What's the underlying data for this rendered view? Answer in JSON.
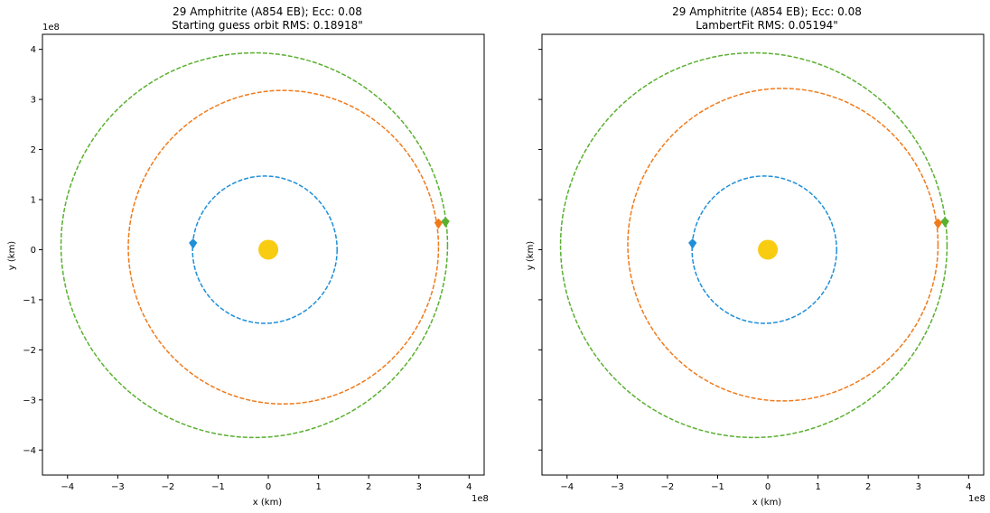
{
  "chart_data": [
    {
      "type": "line",
      "title_line1": "29 Amphitrite (A854 EB); Ecc: 0.08",
      "title_line2": "Starting guess orbit RMS: 0.18918\"",
      "xlabel": "x (km)",
      "ylabel": "y (km)",
      "x_offset_text": "1e8",
      "y_offset_text": "1e8",
      "xlim": [
        -4.5,
        4.3
      ],
      "ylim": [
        -4.5,
        4.3
      ],
      "xticks": [
        -4,
        -3,
        -2,
        -1,
        0,
        1,
        2,
        3,
        4
      ],
      "yticks": [
        -4,
        -3,
        -2,
        -1,
        0,
        1,
        2,
        3,
        4
      ],
      "grid": false,
      "sun": {
        "x": 0,
        "y": 0
      },
      "series": [
        {
          "color": "#1f8fd8",
          "center": [
            -0.07,
            0.0
          ],
          "rx": 1.44,
          "ry": 1.47,
          "marker": [
            -1.5,
            0.12
          ]
        },
        {
          "color": "#f07a1a",
          "center": [
            0.3,
            0.05
          ],
          "rx": 3.09,
          "ry": 3.13,
          "marker": [
            3.39,
            0.52
          ]
        },
        {
          "color": "#5ab030",
          "center": [
            -0.28,
            0.09
          ],
          "rx": 3.85,
          "ry": 3.84,
          "marker": [
            3.53,
            0.55
          ]
        }
      ]
    },
    {
      "type": "line",
      "title_line1": "29 Amphitrite (A854 EB); Ecc: 0.08",
      "title_line2": "LambertFit RMS: 0.05194\"",
      "xlabel": "x (km)",
      "ylabel": "y (km)",
      "x_offset_text": "1e8",
      "y_offset_text": "",
      "xlim": [
        -4.5,
        4.3
      ],
      "ylim": [
        -4.5,
        4.3
      ],
      "xticks": [
        -4,
        -3,
        -2,
        -1,
        0,
        1,
        2,
        3,
        4
      ],
      "yticks": [
        -4,
        -3,
        -2,
        -1,
        0,
        1,
        2,
        3,
        4
      ],
      "show_ytick_labels": false,
      "grid": false,
      "sun": {
        "x": 0,
        "y": 0
      },
      "series": [
        {
          "color": "#1f8fd8",
          "center": [
            -0.07,
            0.0
          ],
          "rx": 1.44,
          "ry": 1.47,
          "marker": [
            -1.5,
            0.12
          ]
        },
        {
          "color": "#f07a1a",
          "center": [
            0.3,
            0.1
          ],
          "rx": 3.09,
          "ry": 3.12,
          "marker": [
            3.39,
            0.52
          ]
        },
        {
          "color": "#5ab030",
          "center": [
            -0.28,
            0.09
          ],
          "rx": 3.85,
          "ry": 3.84,
          "marker": [
            3.53,
            0.55
          ]
        }
      ]
    }
  ]
}
